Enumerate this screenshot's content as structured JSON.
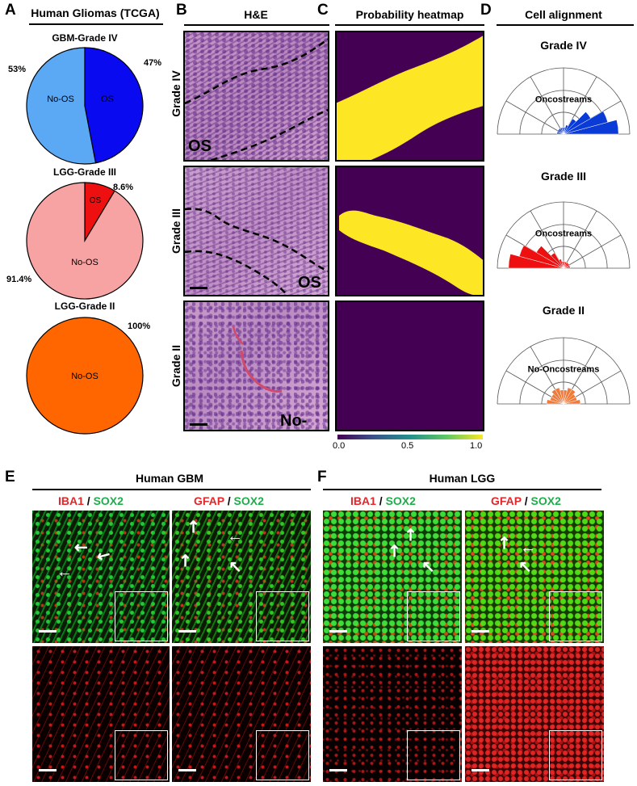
{
  "panels": {
    "A": "A",
    "B": "B",
    "C": "C",
    "D": "D",
    "E": "E",
    "F": "F"
  },
  "headers": {
    "A": "Human Gliomas (TCGA)",
    "B": "H&E",
    "C": "Probability heatmap",
    "D": "Cell alignment",
    "E": "Human GBM",
    "F": "Human LGG"
  },
  "chart_data": [
    {
      "type": "pie",
      "title": "GBM-Grade IV",
      "categories": [
        "No-OS",
        "OS"
      ],
      "values": [
        53,
        47
      ],
      "value_labels": [
        "53%",
        "47%"
      ],
      "colors": [
        "#5ba8f5",
        "#0a0af0"
      ]
    },
    {
      "type": "pie",
      "title": "LGG-Grade III",
      "categories": [
        "No-OS",
        "OS"
      ],
      "values": [
        91.4,
        8.6
      ],
      "value_labels": [
        "91.4%",
        "8.6%"
      ],
      "colors": [
        "#f8a3a3",
        "#ee1010"
      ]
    },
    {
      "type": "pie",
      "title": "LGG-Grade II",
      "categories": [
        "No-OS"
      ],
      "values": [
        100
      ],
      "value_labels": [
        "100%"
      ],
      "colors": [
        "#ff6600"
      ]
    }
  ],
  "he_rows": [
    "Grade IV",
    "Grade III",
    "Grade II"
  ],
  "he_tags": [
    "OS",
    "OS",
    "No-OS"
  ],
  "colorbar": {
    "min": "0.0",
    "mid": "0.5",
    "max": "1.0"
  },
  "polar": [
    {
      "title": "Grade IV",
      "label": "Oncostreams",
      "color": "#0a3bd6",
      "direction": "right"
    },
    {
      "title": "Grade III",
      "label": "Oncostreams",
      "color": "#ee1010",
      "direction": "left"
    },
    {
      "title": "Grade II",
      "label": "No-Oncostreams",
      "color": "#f07a3a",
      "direction": "even"
    }
  ],
  "fluor": {
    "iba1": "IBA1",
    "gfap": "GFAP",
    "sox2": "SOX2",
    "slash": " / "
  }
}
